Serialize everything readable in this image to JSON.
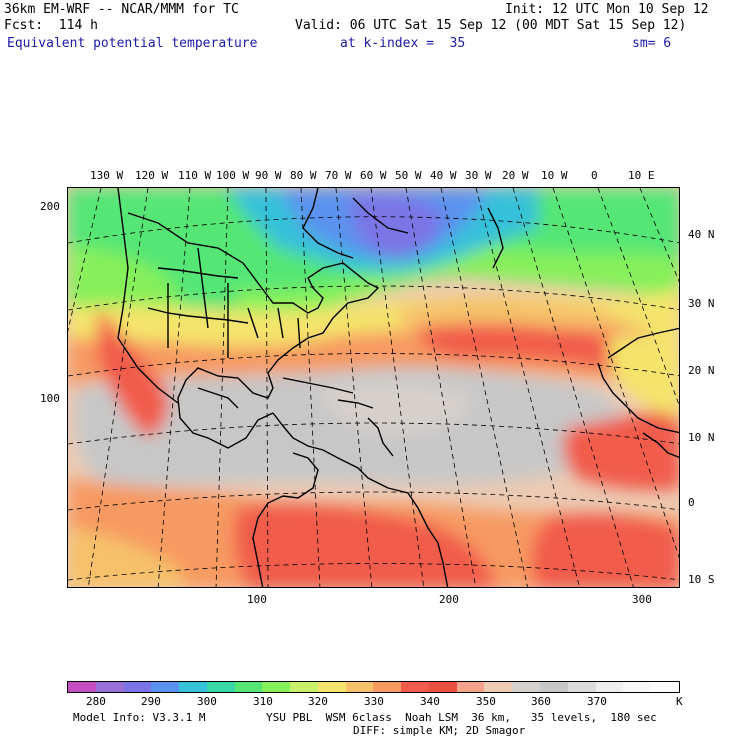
{
  "header": {
    "model_title": "36km EM-WRF -- NCAR/MMM for TC",
    "init": "Init: 12 UTC Mon 10 Sep 12",
    "fcst": "Fcst:  114 h",
    "valid": "Valid: 06 UTC Sat 15 Sep 12 (00 MDT Sat 15 Sep 12)",
    "field": "Equivalent potential temperature",
    "level": "at k-index =  35",
    "smoothing": "sm= 6"
  },
  "map": {
    "top_lon_labels": [
      "130 W",
      "120 W",
      "110 W",
      "100 W",
      "90 W",
      "80 W",
      "70 W",
      "60 W",
      "50 W",
      "40 W",
      "30 W",
      "20 W",
      "10 W",
      "0",
      "10 E"
    ],
    "right_lat_labels": [
      "40 N",
      "30 N",
      "20 N",
      "10 N",
      "0",
      "10 S"
    ],
    "left_grid_labels": [
      "200",
      "100"
    ],
    "bottom_grid_labels": [
      "100",
      "200",
      "300"
    ]
  },
  "colorbar": {
    "labels": [
      "280",
      "290",
      "300",
      "310",
      "320",
      "330",
      "340",
      "350",
      "360",
      "370",
      "K"
    ],
    "colors": [
      "#c34fc3",
      "#9a6fd6",
      "#7b74e6",
      "#5a93ef",
      "#34c1d9",
      "#3ad6a8",
      "#55e676",
      "#86f05a",
      "#c8f06a",
      "#f4e46c",
      "#f6c16b",
      "#f79a62",
      "#f15b4c",
      "#e9503f",
      "#f3a38c",
      "#eccab3",
      "#d6d0cc",
      "#c7c7c7",
      "#dcdcdc",
      "#eeeeee",
      "#f8f8f8",
      "#ffffff"
    ]
  },
  "footer": {
    "model_info": "Model Info: V3.3.1 M",
    "physics": "YSU PBL  WSM 6class  Noah LSM  36 km,   35 levels,  180 sec",
    "diffusion": "DIFF: simple KM; 2D Smagor"
  }
}
